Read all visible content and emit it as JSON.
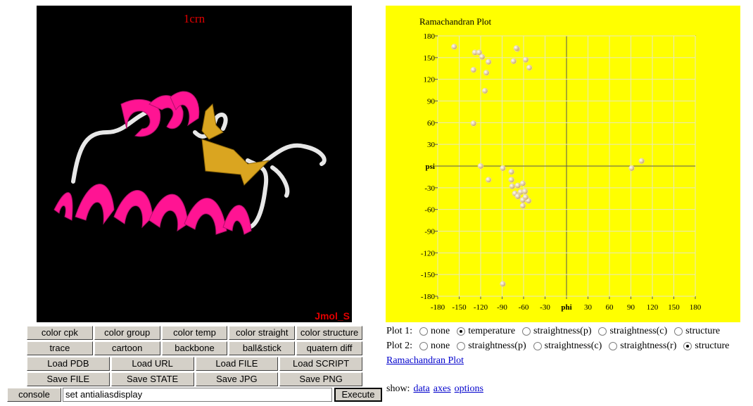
{
  "viewer": {
    "title": "1crn",
    "badge": "Jmol_S"
  },
  "buttons": [
    [
      "color cpk",
      "color group",
      "color temp",
      "color straight",
      "color structure"
    ],
    [
      "trace",
      "cartoon",
      "backbone",
      "ball&stick",
      "quatern diff"
    ],
    [
      "Load PDB",
      "Load URL",
      "Load FILE",
      "Load SCRIPT"
    ],
    [
      "Save FILE",
      "Save STATE",
      "Save JPG",
      "Save PNG"
    ]
  ],
  "console": {
    "button": "console",
    "input": "set antialiasdisplay",
    "execute": "Execute"
  },
  "chart_data": {
    "type": "scatter",
    "title": "Ramachandran Plot",
    "xlim": [
      -180,
      180
    ],
    "ylim": [
      -180,
      180
    ],
    "xticks": [
      -180,
      -150,
      -120,
      -90,
      -60,
      -30,
      {
        "value": 0,
        "label": "phi"
      },
      30,
      60,
      90,
      120,
      150,
      180
    ],
    "yticks": [
      -180,
      -150,
      -120,
      -90,
      -60,
      -30,
      {
        "value": 0,
        "label": "psi"
      },
      30,
      60,
      90,
      120,
      150,
      180
    ],
    "grid": true,
    "series": [
      {
        "color": "#f7e7b0",
        "x": [
          -157,
          -128,
          -122,
          -118,
          -109,
          -112,
          -130,
          -114,
          -130,
          -120,
          -109,
          -89,
          -77,
          -77,
          -76,
          -72,
          -68,
          -61,
          -64,
          -58,
          -68,
          -56,
          -61,
          -53,
          -61,
          -57,
          -74,
          -69,
          -70,
          -57,
          -52,
          -89,
          91,
          105
        ],
        "values": [
          165,
          157,
          157,
          151,
          144,
          129,
          133,
          104,
          59,
          0,
          -19,
          -3,
          -8,
          -19,
          -28,
          -38,
          -27,
          -24,
          -36,
          -35,
          -42,
          -46,
          -47,
          -48,
          -55,
          -43,
          145,
          162,
          163,
          147,
          136,
          -163,
          -3,
          7
        ]
      }
    ]
  },
  "plot_options": [
    {
      "label": "Plot 1:",
      "options": [
        "none",
        "temperature",
        "straightness(p)",
        "straightness(c)",
        "structure"
      ],
      "selected": 1
    },
    {
      "label": "Plot 2:",
      "options": [
        "none",
        "straightness(p)",
        "straightness(c)",
        "straightness(r)",
        "structure"
      ],
      "selected": 4
    }
  ],
  "link": "Ramachandran Plot",
  "show": {
    "label": "show:",
    "links": [
      "data",
      "axes",
      "options"
    ]
  }
}
